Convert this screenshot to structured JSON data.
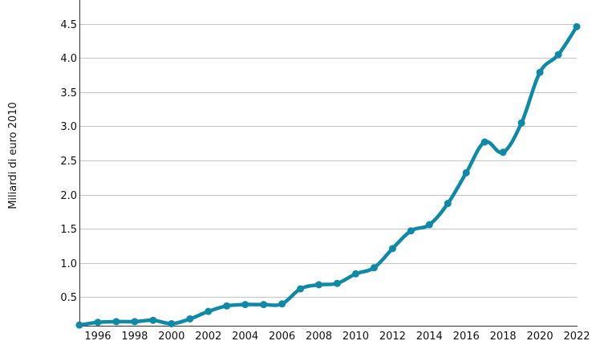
{
  "chart_data": {
    "type": "line",
    "title": "",
    "xlabel": "",
    "ylabel": "Miliardi di euro 2010",
    "xlim": [
      1995,
      2022
    ],
    "ylim": [
      0.08,
      4.85
    ],
    "x_ticks": [
      1996,
      1998,
      2000,
      2002,
      2004,
      2006,
      2008,
      2010,
      2012,
      2014,
      2016,
      2018,
      2020,
      2022
    ],
    "y_ticks": [
      0.5,
      1.0,
      1.5,
      2.0,
      2.5,
      3.0,
      3.5,
      4.0,
      4.5
    ],
    "y_tick_labels": [
      "0.5",
      "1.0",
      "1.5",
      "2.0",
      "2.5",
      "3.0",
      "3.5",
      "4.0",
      "4.5"
    ],
    "grid": "horizontal",
    "legend": "none",
    "line_color": "#0e8aa8",
    "grid_color": "#c4c4c4",
    "series": [
      {
        "x": [
          1995,
          1996,
          1997,
          1998,
          1999,
          2000,
          2001,
          2002,
          2003,
          2004,
          2005,
          2006,
          2007,
          2008,
          2009,
          2010,
          2011,
          2012,
          2013,
          2014,
          2015,
          2016,
          2017,
          2018,
          2019,
          2020,
          2021,
          2022
        ],
        "values": [
          0.09,
          0.13,
          0.14,
          0.14,
          0.16,
          0.11,
          0.18,
          0.29,
          0.37,
          0.39,
          0.39,
          0.4,
          0.62,
          0.68,
          0.7,
          0.84,
          0.93,
          1.21,
          1.47,
          1.56,
          1.87,
          2.32,
          2.77,
          2.62,
          3.05,
          3.79,
          4.05,
          4.46
        ]
      }
    ]
  }
}
